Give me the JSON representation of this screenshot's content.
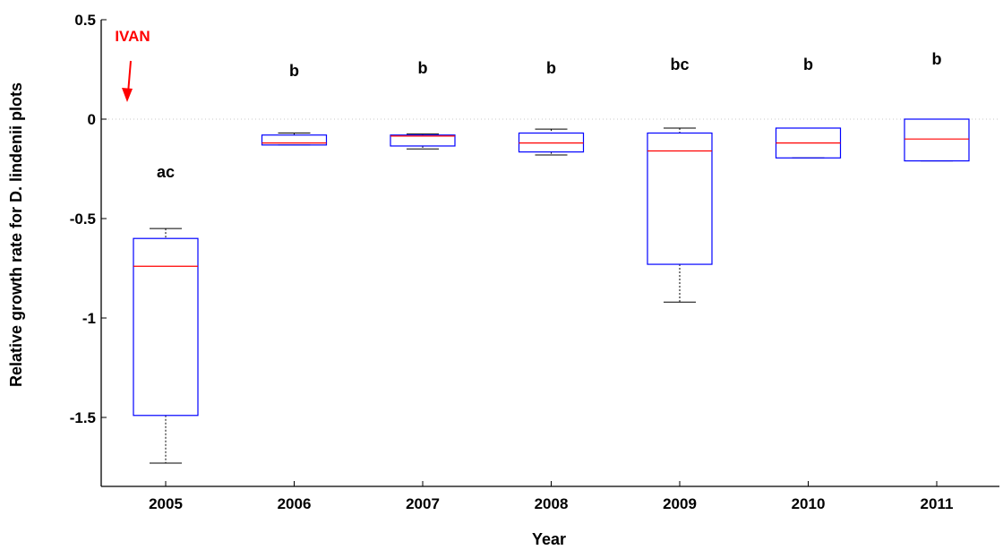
{
  "chart_data": {
    "type": "box",
    "xlabel": "Year",
    "ylabel": "Relative growth rate for D. lindenii plots",
    "ylim": [
      -1.8,
      0.5
    ],
    "yticks": [
      "0.5",
      "0",
      "-0.5",
      "-1",
      "-1.5"
    ],
    "ytick_values": [
      0.5,
      0,
      -0.5,
      -1,
      -1.5
    ],
    "reference_line": {
      "y": 0,
      "style": "dotted"
    },
    "categories": [
      "2005",
      "2006",
      "2007",
      "2008",
      "2009",
      "2010",
      "2011"
    ],
    "boxes": [
      {
        "category": "2005",
        "whisker_low": -1.73,
        "q1": -1.49,
        "median": -0.74,
        "q3": -0.6,
        "whisker_high": -0.55,
        "label": "ac"
      },
      {
        "category": "2006",
        "whisker_low": -0.13,
        "q1": -0.13,
        "median": -0.12,
        "q3": -0.08,
        "whisker_high": -0.07,
        "label": "b"
      },
      {
        "category": "2007",
        "whisker_low": -0.15,
        "q1": -0.135,
        "median": -0.085,
        "q3": -0.08,
        "whisker_high": -0.075,
        "label": "b"
      },
      {
        "category": "2008",
        "whisker_low": -0.18,
        "q1": -0.165,
        "median": -0.12,
        "q3": -0.07,
        "whisker_high": -0.05,
        "label": "b"
      },
      {
        "category": "2009",
        "whisker_low": -0.92,
        "q1": -0.73,
        "median": -0.16,
        "q3": -0.07,
        "whisker_high": -0.045,
        "label": "bc"
      },
      {
        "category": "2010",
        "whisker_low": -0.195,
        "q1": -0.195,
        "median": -0.12,
        "q3": -0.045,
        "whisker_high": -0.045,
        "label": "b"
      },
      {
        "category": "2011",
        "whisker_low": -0.21,
        "q1": -0.21,
        "median": -0.1,
        "q3": 0.0,
        "whisker_high": 0.0,
        "label": "b"
      }
    ],
    "annotation": {
      "text": "IVAN",
      "color": "#ff0000",
      "category": "2005"
    },
    "colors": {
      "box": "#0000ff",
      "median": "#ff0000",
      "whisker": "#000000"
    }
  }
}
